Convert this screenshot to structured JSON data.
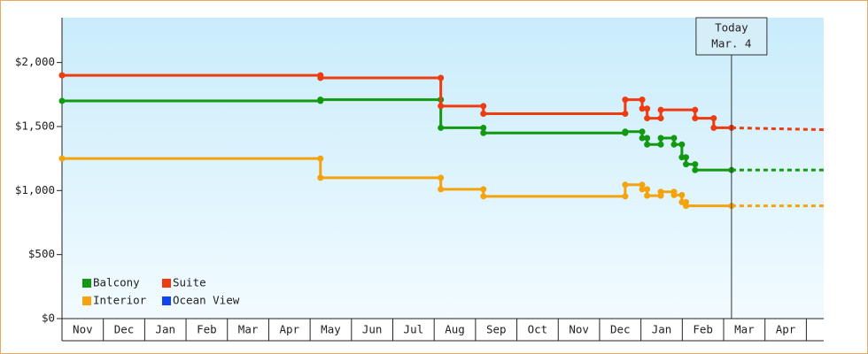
{
  "chart_data": {
    "type": "line",
    "step": true,
    "xlim": [
      0,
      18.42
    ],
    "xticks": [
      {
        "value": 0.5,
        "label": "Nov"
      },
      {
        "value": 1.5,
        "label": "Dec"
      },
      {
        "value": 2.5,
        "label": "Jan"
      },
      {
        "value": 3.5,
        "label": "Feb"
      },
      {
        "value": 4.5,
        "label": "Mar"
      },
      {
        "value": 5.5,
        "label": "Apr"
      },
      {
        "value": 6.5,
        "label": "May"
      },
      {
        "value": 7.5,
        "label": "Jun"
      },
      {
        "value": 8.5,
        "label": "Jul"
      },
      {
        "value": 9.5,
        "label": "Aug"
      },
      {
        "value": 10.5,
        "label": "Sep"
      },
      {
        "value": 11.5,
        "label": "Oct"
      },
      {
        "value": 12.5,
        "label": "Nov"
      },
      {
        "value": 13.5,
        "label": "Dec"
      },
      {
        "value": 14.5,
        "label": "Jan"
      },
      {
        "value": 15.5,
        "label": "Feb"
      },
      {
        "value": 16.5,
        "label": "Mar"
      },
      {
        "value": 17.5,
        "label": "Apr"
      }
    ],
    "ylim": [
      0,
      2350
    ],
    "yticks": [
      {
        "value": 0,
        "label": "$0"
      },
      {
        "value": 500,
        "label": "$500"
      },
      {
        "value": 1000,
        "label": "$1,000"
      },
      {
        "value": 1500,
        "label": "$1,500"
      },
      {
        "value": 2000,
        "label": "$2,000"
      }
    ],
    "legend": "bottom-left",
    "today": {
      "x": 16.19,
      "label": [
        "Today",
        "Mar. 4"
      ]
    },
    "series": [
      {
        "name": "Balcony",
        "color": "#119911",
        "x": [
          0,
          6.25,
          6.25,
          9.16,
          9.16,
          10.19,
          10.19,
          13.62,
          13.62,
          14.03,
          14.03,
          14.15,
          14.15,
          14.48,
          14.48,
          14.8,
          14.8,
          14.99,
          14.99,
          15.09,
          15.09,
          15.31,
          15.31,
          16.19
        ],
        "values": [
          1700,
          1700,
          1710,
          1710,
          1490,
          1490,
          1450,
          1450,
          1460,
          1460,
          1410,
          1410,
          1360,
          1360,
          1410,
          1410,
          1360,
          1360,
          1260,
          1260,
          1205,
          1205,
          1160,
          1160
        ],
        "forecast_x": [
          16.19,
          18.42
        ],
        "forecast_values": [
          1160,
          1160
        ]
      },
      {
        "name": "Suite",
        "color": "#ee3b0f",
        "x": [
          0,
          6.25,
          6.25,
          9.16,
          9.16,
          10.19,
          10.19,
          13.62,
          13.62,
          14.03,
          14.03,
          14.15,
          14.15,
          14.48,
          14.48,
          15.31,
          15.31,
          15.76,
          15.76,
          16.19
        ],
        "values": [
          1900,
          1900,
          1880,
          1880,
          1660,
          1660,
          1600,
          1600,
          1710,
          1710,
          1640,
          1640,
          1565,
          1565,
          1630,
          1630,
          1565,
          1565,
          1490,
          1490
        ],
        "forecast_x": [
          16.19,
          18.42
        ],
        "forecast_values": [
          1490,
          1475
        ]
      },
      {
        "name": "Interior",
        "color": "#f5a30c",
        "x": [
          0,
          6.25,
          6.25,
          9.16,
          9.16,
          10.19,
          10.19,
          13.62,
          13.62,
          14.03,
          14.03,
          14.15,
          14.15,
          14.48,
          14.48,
          14.8,
          14.8,
          14.99,
          14.99,
          15.09,
          15.09,
          16.19
        ],
        "values": [
          1250,
          1250,
          1100,
          1100,
          1010,
          1010,
          955,
          955,
          1045,
          1045,
          1010,
          1010,
          960,
          960,
          990,
          990,
          965,
          965,
          910,
          910,
          880,
          880
        ],
        "forecast_x": [
          16.19,
          18.42
        ],
        "forecast_values": [
          880,
          880
        ]
      },
      {
        "name": "Ocean View",
        "color": "#1144ee",
        "x": [],
        "values": [],
        "forecast_x": [],
        "forecast_values": []
      }
    ]
  }
}
